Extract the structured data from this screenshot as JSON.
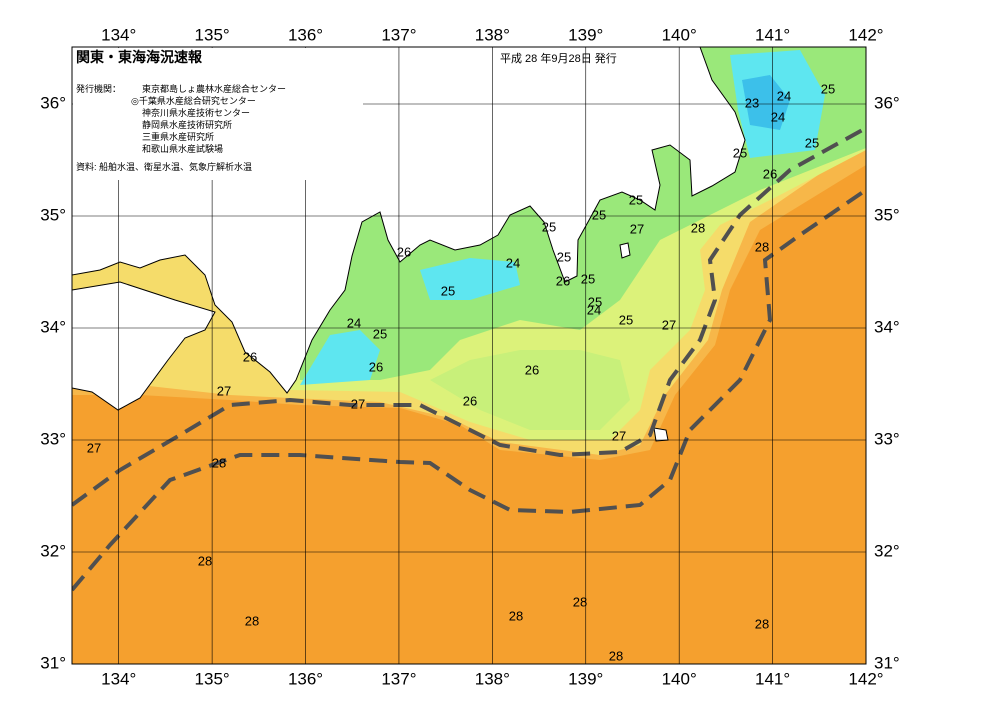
{
  "header": {
    "title": "関東・東海海況速報",
    "date": "平成 28 年9月28日 発行",
    "issuer_label": "発行機関：",
    "issuers": [
      "東京都島しょ農林水産総合センター",
      "◎千葉県水産総合研究センター",
      "神奈川県水産技術センター",
      "静岡県水産技術研究所",
      "三重県水産研究所",
      "和歌山県水産試験場"
    ],
    "source": "資料: 船舶水温、衛星水温、気象庁解析水温"
  },
  "map": {
    "longitudes": [
      {
        "value": 134,
        "label": "134°"
      },
      {
        "value": 135,
        "label": "135°"
      },
      {
        "value": 136,
        "label": "136°"
      },
      {
        "value": 137,
        "label": "137°"
      },
      {
        "value": 138,
        "label": "138°"
      },
      {
        "value": 139,
        "label": "139°"
      },
      {
        "value": 140,
        "label": "140°"
      },
      {
        "value": 141,
        "label": "141°"
      },
      {
        "value": 142,
        "label": "142°"
      }
    ],
    "latitudes": [
      {
        "value": 31,
        "label": "31°"
      },
      {
        "value": 32,
        "label": "32°"
      },
      {
        "value": 33,
        "label": "33°"
      },
      {
        "value": 34,
        "label": "34°"
      },
      {
        "value": 35,
        "label": "35°"
      },
      {
        "value": 36,
        "label": "36°"
      }
    ],
    "contour_labels": [
      "23",
      "24",
      "25",
      "24",
      "25",
      "25",
      "26",
      "25",
      "25",
      "27",
      "28",
      "28",
      "25",
      "25",
      "26",
      "24",
      "26",
      "25",
      "25",
      "24",
      "25",
      "27",
      "25",
      "24",
      "25",
      "26",
      "26",
      "26",
      "27",
      "27",
      "26",
      "27",
      "27",
      "28",
      "28",
      "28",
      "28",
      "28",
      "28",
      "28"
    ]
  }
}
